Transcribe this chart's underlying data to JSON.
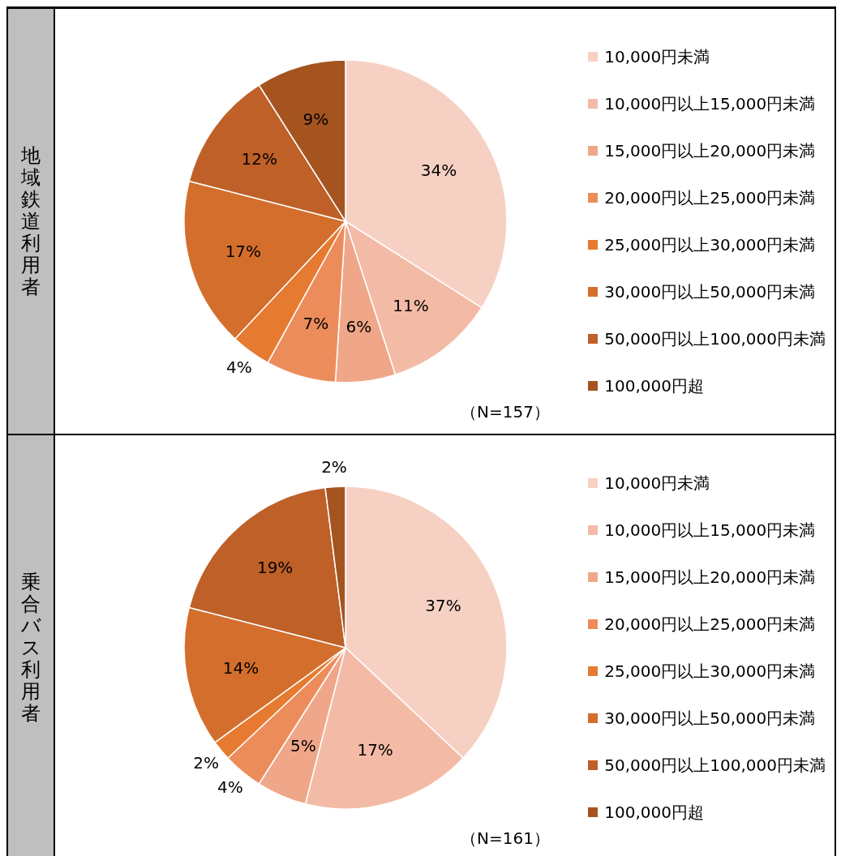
{
  "chart_data": [
    {
      "type": "pie",
      "title": "地域鉄道利用者",
      "categories": [
        "10,000円未満",
        "10,000円以上15,000円未満",
        "15,000円以上20,000円未満",
        "20,000円以上25,000円未満",
        "25,000円以上30,000円未満",
        "30,000円以上50,000円未満",
        "50,000円以上100,000円未満",
        "100,000円超"
      ],
      "values": [
        34,
        11,
        6,
        7,
        4,
        17,
        12,
        9
      ],
      "value_labels": [
        "34%",
        "11%",
        "6%",
        "7%",
        "4%",
        "17%",
        "12%",
        "9%"
      ],
      "colors": [
        "#f6d1c3",
        "#f3bba6",
        "#f0a789",
        "#ed8c5b",
        "#e67a30",
        "#d46e2c",
        "#be6027",
        "#a55420"
      ],
      "legend": "right",
      "annotations": [
        "（N=157）"
      ]
    },
    {
      "type": "pie",
      "title": "乗合バス利用者",
      "categories": [
        "10,000円未満",
        "10,000円以上15,000円未満",
        "15,000円以上20,000円未満",
        "20,000円以上25,000円未満",
        "25,000円以上30,000円未満",
        "30,000円以上50,000円未満",
        "50,000円以上100,000円未満",
        "100,000円超"
      ],
      "values": [
        37,
        17,
        5,
        4,
        2,
        14,
        19,
        2
      ],
      "value_labels": [
        "37%",
        "17%",
        "5%",
        "4%",
        "2%",
        "14%",
        "19%",
        "2%"
      ],
      "colors": [
        "#f6d1c3",
        "#f3bba6",
        "#f0a789",
        "#ed8c5b",
        "#e67a30",
        "#d46e2c",
        "#be6027",
        "#a55420"
      ],
      "legend": "right",
      "annotations": [
        "（N=161）"
      ]
    }
  ]
}
